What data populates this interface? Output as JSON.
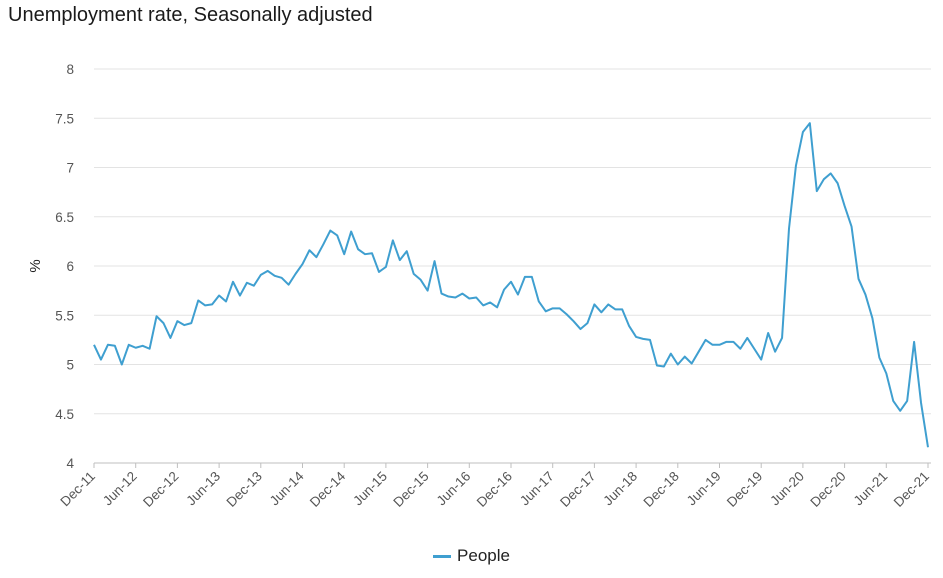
{
  "chart_data": {
    "type": "line",
    "title": "Unemployment rate, Seasonally adjusted",
    "ylabel": "%",
    "xlabel": "",
    "ylim": [
      4,
      8
    ],
    "yticks": [
      "4",
      "4.5",
      "5",
      "5.5",
      "6",
      "6.5",
      "7",
      "7.5",
      "8"
    ],
    "xticks": [
      "Dec-11",
      "Jun-12",
      "Dec-12",
      "Jun-13",
      "Dec-13",
      "Jun-14",
      "Dec-14",
      "Jun-15",
      "Dec-15",
      "Jun-16",
      "Dec-16",
      "Jun-17",
      "Dec-17",
      "Jun-18",
      "Dec-18",
      "Jun-19",
      "Dec-19",
      "Jun-20",
      "Dec-20",
      "Jun-21",
      "Dec-21"
    ],
    "grid": true,
    "legend_position": "bottom",
    "colors": {
      "series": "#3f9fd0"
    },
    "series": [
      {
        "name": "People",
        "values": [
          5.2,
          5.05,
          5.2,
          5.19,
          5.0,
          5.2,
          5.17,
          5.19,
          5.16,
          5.49,
          5.42,
          5.27,
          5.44,
          5.4,
          5.42,
          5.65,
          5.6,
          5.61,
          5.7,
          5.64,
          5.84,
          5.7,
          5.83,
          5.8,
          5.91,
          5.95,
          5.9,
          5.88,
          5.81,
          5.92,
          6.02,
          6.16,
          6.09,
          6.22,
          6.36,
          6.31,
          6.12,
          6.35,
          6.17,
          6.12,
          6.13,
          5.94,
          5.99,
          6.26,
          6.06,
          6.15,
          5.92,
          5.86,
          5.75,
          6.05,
          5.72,
          5.69,
          5.68,
          5.72,
          5.67,
          5.68,
          5.6,
          5.63,
          5.58,
          5.76,
          5.84,
          5.71,
          5.89,
          5.89,
          5.64,
          5.54,
          5.57,
          5.57,
          5.51,
          5.44,
          5.36,
          5.42,
          5.61,
          5.53,
          5.61,
          5.56,
          5.56,
          5.39,
          5.28,
          5.26,
          5.25,
          4.99,
          4.98,
          5.11,
          5.0,
          5.08,
          5.01,
          5.13,
          5.25,
          5.2,
          5.2,
          5.23,
          5.23,
          5.16,
          5.27,
          5.16,
          5.05,
          5.32,
          5.13,
          5.27,
          6.38,
          7.02,
          7.36,
          7.45,
          6.76,
          6.88,
          6.94,
          6.84,
          6.61,
          6.4,
          5.87,
          5.71,
          5.47,
          5.07,
          4.91,
          4.63,
          4.53,
          4.63,
          5.23,
          4.61,
          4.16
        ]
      }
    ]
  }
}
